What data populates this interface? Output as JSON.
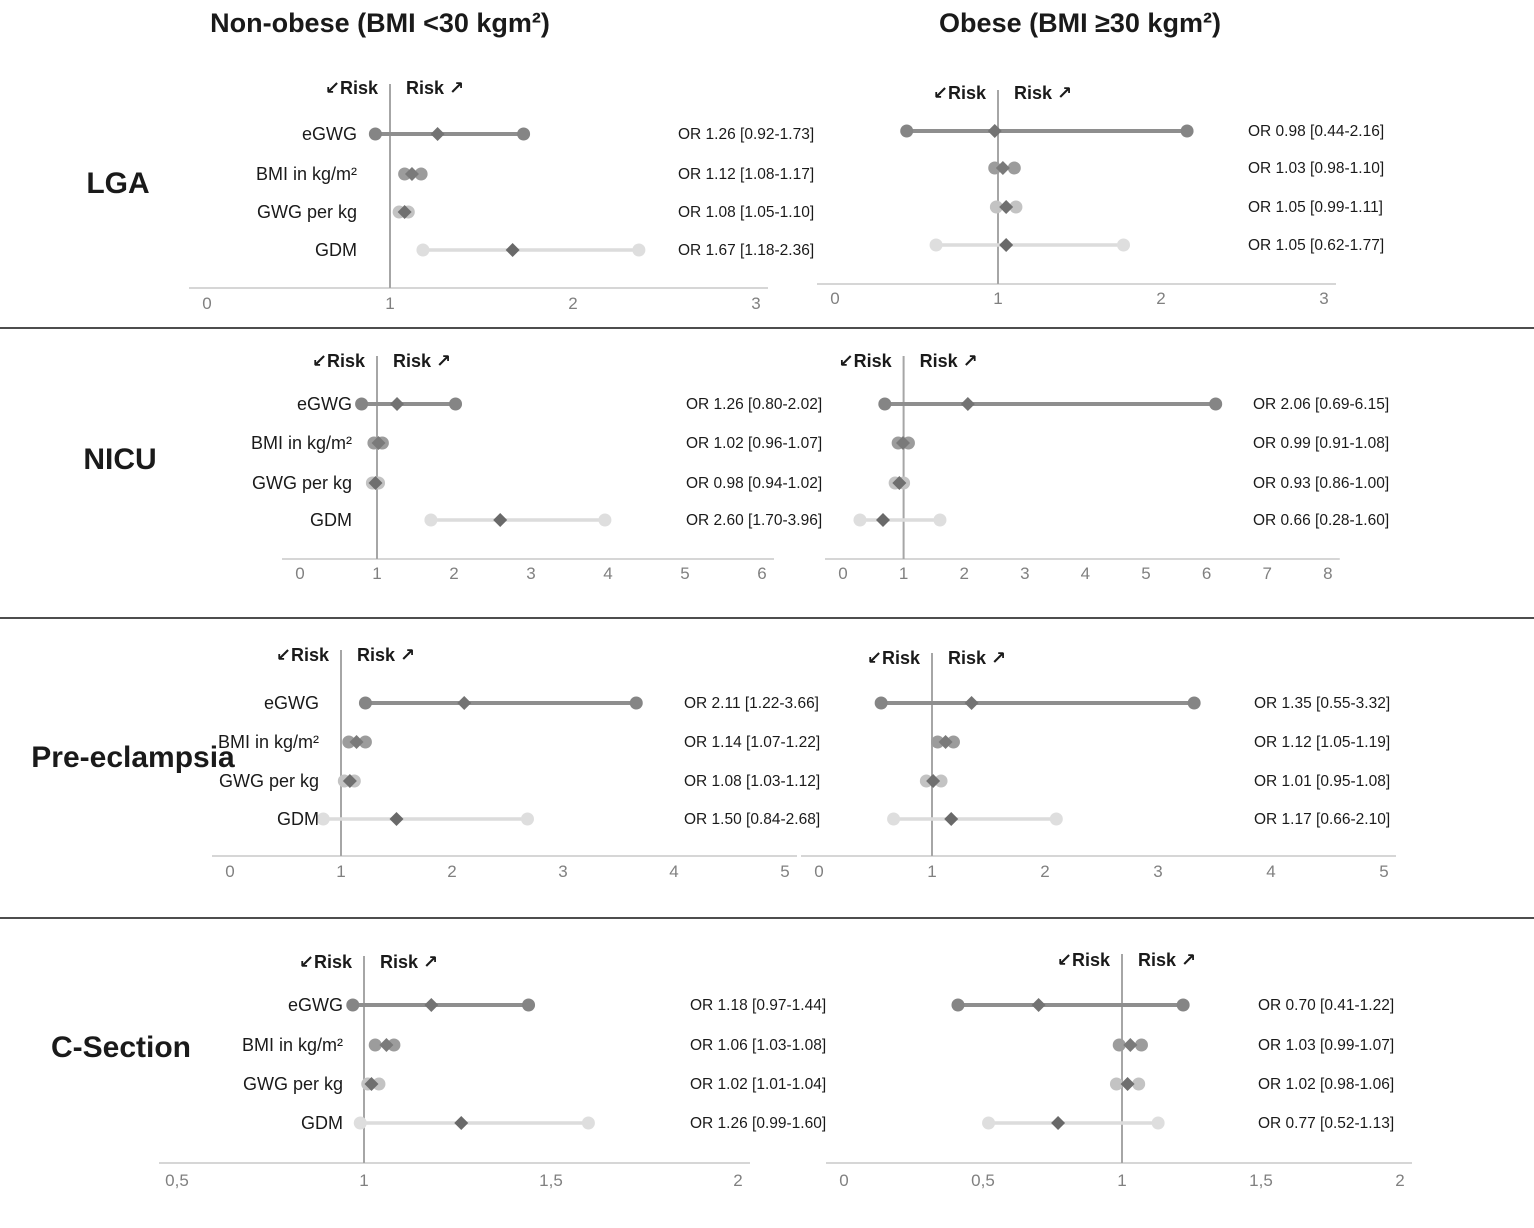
{
  "figure": {
    "column_titles": [
      "Non-obese (BMI <30 kgm²)",
      "Obese (BMI ≥30 kgm²)"
    ],
    "risk_decrease_label": "↙Risk",
    "risk_increase_label": "Risk ↗",
    "or_label_prefix": "OR",
    "colors": {
      "axis_line": "#c9c9c9",
      "reference_line": "#a6a6a6",
      "tick_label": "#808080",
      "separator": "#4d4d4d",
      "text": "#1a1a1a",
      "series": {
        "eGWG": {
          "line": "#8e8e8e",
          "endpoint": "#858585",
          "diamond": "#737373",
          "line_width": 4
        },
        "BMI in kg/m²": {
          "line": "#9c9c9c",
          "endpoint": "#9c9c9c",
          "diamond": "#7a7a7a",
          "line_width": 3
        },
        "GWG per kg": {
          "line": "#c3c3c3",
          "endpoint": "#c3c3c3",
          "diamond": "#6f6f6f",
          "line_width": 3
        },
        "GDM": {
          "line": "#dcdcdc",
          "endpoint": "#dedede",
          "diamond": "#696969",
          "line_width": 3.5
        }
      }
    }
  },
  "chart_data": [
    {
      "type": "forest",
      "outcome": "LGA",
      "panels": [
        {
          "group": "Non-obese (BMI <30 kgm²)",
          "x_axis": {
            "min": 0,
            "max": 3,
            "reference_line": 1,
            "ticks": [
              0,
              1,
              2,
              3
            ],
            "tick_labels": [
              "0",
              "1",
              "2",
              "3"
            ]
          },
          "rows": [
            {
              "predictor": "eGWG",
              "or": 1.26,
              "ci_low": 0.92,
              "ci_high": 1.73,
              "label": "OR 1.26 [0.92-1.73]"
            },
            {
              "predictor": "BMI in kg/m²",
              "or": 1.12,
              "ci_low": 1.08,
              "ci_high": 1.17,
              "label": "OR 1.12 [1.08-1.17]"
            },
            {
              "predictor": "GWG per kg",
              "or": 1.08,
              "ci_low": 1.05,
              "ci_high": 1.1,
              "label": "OR 1.08 [1.05-1.10]"
            },
            {
              "predictor": "GDM",
              "or": 1.67,
              "ci_low": 1.18,
              "ci_high": 2.36,
              "label": "OR 1.67 [1.18-2.36]"
            }
          ]
        },
        {
          "group": "Obese (BMI ≥30 kgm²)",
          "x_axis": {
            "min": 0,
            "max": 3,
            "reference_line": 1,
            "ticks": [
              0,
              1,
              2,
              3
            ],
            "tick_labels": [
              "0",
              "1",
              "2",
              "3"
            ]
          },
          "rows": [
            {
              "predictor": "eGWG",
              "or": 0.98,
              "ci_low": 0.44,
              "ci_high": 2.16,
              "label": "OR 0.98 [0.44-2.16]"
            },
            {
              "predictor": "BMI in kg/m²",
              "or": 1.03,
              "ci_low": 0.98,
              "ci_high": 1.1,
              "label": "OR 1.03 [0.98-1.10]"
            },
            {
              "predictor": "GWG per kg",
              "or": 1.05,
              "ci_low": 0.99,
              "ci_high": 1.11,
              "label": "OR 1.05 [0.99-1.11]"
            },
            {
              "predictor": "GDM",
              "or": 1.05,
              "ci_low": 0.62,
              "ci_high": 1.77,
              "label": "OR 1.05 [0.62-1.77]"
            }
          ]
        }
      ]
    },
    {
      "type": "forest",
      "outcome": "NICU",
      "panels": [
        {
          "group": "Non-obese (BMI <30 kgm²)",
          "x_axis": {
            "min": 0,
            "max": 6,
            "reference_line": 1,
            "ticks": [
              0,
              1,
              2,
              3,
              4,
              5,
              6
            ],
            "tick_labels": [
              "0",
              "1",
              "2",
              "3",
              "4",
              "5",
              "6"
            ]
          },
          "rows": [
            {
              "predictor": "eGWG",
              "or": 1.26,
              "ci_low": 0.8,
              "ci_high": 2.02,
              "label": "OR 1.26 [0.80-2.02]"
            },
            {
              "predictor": "BMI in kg/m²",
              "or": 1.02,
              "ci_low": 0.96,
              "ci_high": 1.07,
              "label": "OR 1.02 [0.96-1.07]"
            },
            {
              "predictor": "GWG per kg",
              "or": 0.98,
              "ci_low": 0.94,
              "ci_high": 1.02,
              "label": "OR 0.98 [0.94-1.02]"
            },
            {
              "predictor": "GDM",
              "or": 2.6,
              "ci_low": 1.7,
              "ci_high": 3.96,
              "label": "OR 2.60 [1.70-3.96]"
            }
          ]
        },
        {
          "group": "Obese (BMI ≥30 kgm²)",
          "x_axis": {
            "min": 0,
            "max": 8,
            "reference_line": 1,
            "ticks": [
              0,
              1,
              2,
              3,
              4,
              5,
              6,
              7,
              8
            ],
            "tick_labels": [
              "0",
              "1",
              "2",
              "3",
              "4",
              "5",
              "6",
              "7",
              "8"
            ]
          },
          "rows": [
            {
              "predictor": "eGWG",
              "or": 2.06,
              "ci_low": 0.69,
              "ci_high": 6.15,
              "label": "OR 2.06 [0.69-6.15]"
            },
            {
              "predictor": "BMI in kg/m²",
              "or": 0.99,
              "ci_low": 0.91,
              "ci_high": 1.08,
              "label": "OR 0.99 [0.91-1.08]"
            },
            {
              "predictor": "GWG per kg",
              "or": 0.93,
              "ci_low": 0.86,
              "ci_high": 1.0,
              "label": "OR 0.93 [0.86-1.00]"
            },
            {
              "predictor": "GDM",
              "or": 0.66,
              "ci_low": 0.28,
              "ci_high": 1.6,
              "label": "OR 0.66 [0.28-1.60]"
            }
          ]
        }
      ]
    },
    {
      "type": "forest",
      "outcome": "Pre-eclampsia",
      "panels": [
        {
          "group": "Non-obese (BMI <30 kgm²)",
          "x_axis": {
            "min": 0,
            "max": 5,
            "reference_line": 1,
            "ticks": [
              0,
              1,
              2,
              3,
              4,
              5
            ],
            "tick_labels": [
              "0",
              "1",
              "2",
              "3",
              "4",
              "5"
            ]
          },
          "rows": [
            {
              "predictor": "eGWG",
              "or": 2.11,
              "ci_low": 1.22,
              "ci_high": 3.66,
              "label": "OR 2.11 [1.22-3.66]"
            },
            {
              "predictor": "BMI in kg/m²",
              "or": 1.14,
              "ci_low": 1.07,
              "ci_high": 1.22,
              "label": "OR 1.14 [1.07-1.22]"
            },
            {
              "predictor": "GWG per kg",
              "or": 1.08,
              "ci_low": 1.03,
              "ci_high": 1.12,
              "label": "OR 1.08 [1.03-1.12]"
            },
            {
              "predictor": "GDM",
              "or": 1.5,
              "ci_low": 0.84,
              "ci_high": 2.68,
              "label": "OR 1.50 [0.84-2.68]"
            }
          ]
        },
        {
          "group": "Obese (BMI ≥30 kgm²)",
          "x_axis": {
            "min": 0,
            "max": 5,
            "reference_line": 1,
            "ticks": [
              0,
              1,
              2,
              3,
              4,
              5
            ],
            "tick_labels": [
              "0",
              "1",
              "2",
              "3",
              "4",
              "5"
            ]
          },
          "rows": [
            {
              "predictor": "eGWG",
              "or": 1.35,
              "ci_low": 0.55,
              "ci_high": 3.32,
              "label": "OR 1.35 [0.55-3.32]"
            },
            {
              "predictor": "BMI in kg/m²",
              "or": 1.12,
              "ci_low": 1.05,
              "ci_high": 1.19,
              "label": "OR 1.12 [1.05-1.19]"
            },
            {
              "predictor": "GWG per kg",
              "or": 1.01,
              "ci_low": 0.95,
              "ci_high": 1.08,
              "label": "OR 1.01 [0.95-1.08]"
            },
            {
              "predictor": "GDM",
              "or": 1.17,
              "ci_low": 0.66,
              "ci_high": 2.1,
              "label": "OR 1.17 [0.66-2.10]"
            }
          ]
        }
      ]
    },
    {
      "type": "forest",
      "outcome": "C-Section",
      "panels": [
        {
          "group": "Non-obese (BMI <30 kgm²)",
          "x_axis": {
            "min": 0.5,
            "max": 2,
            "reference_line": 1,
            "ticks": [
              0.5,
              1,
              1.5,
              2
            ],
            "tick_labels": [
              "0,5",
              "1",
              "1,5",
              "2"
            ]
          },
          "rows": [
            {
              "predictor": "eGWG",
              "or": 1.18,
              "ci_low": 0.97,
              "ci_high": 1.44,
              "label": "OR 1.18 [0.97-1.44]"
            },
            {
              "predictor": "BMI in kg/m²",
              "or": 1.06,
              "ci_low": 1.03,
              "ci_high": 1.08,
              "label": "OR 1.06 [1.03-1.08]"
            },
            {
              "predictor": "GWG per kg",
              "or": 1.02,
              "ci_low": 1.01,
              "ci_high": 1.04,
              "label": "OR 1.02 [1.01-1.04]"
            },
            {
              "predictor": "GDM",
              "or": 1.26,
              "ci_low": 0.99,
              "ci_high": 1.6,
              "label": "OR 1.26 [0.99-1.60]"
            }
          ]
        },
        {
          "group": "Obese (BMI ≥30 kgm²)",
          "x_axis": {
            "min": 0,
            "max": 2,
            "reference_line": 1,
            "ticks": [
              0,
              0.5,
              1,
              1.5,
              2
            ],
            "tick_labels": [
              "0",
              "0,5",
              "1",
              "1,5",
              "2"
            ]
          },
          "rows": [
            {
              "predictor": "eGWG",
              "or": 0.7,
              "ci_low": 0.41,
              "ci_high": 1.22,
              "label": "OR 0.70 [0.41-1.22]"
            },
            {
              "predictor": "BMI in kg/m²",
              "or": 1.03,
              "ci_low": 0.99,
              "ci_high": 1.07,
              "label": "OR 1.03 [0.99-1.07]"
            },
            {
              "predictor": "GWG per kg",
              "or": 1.02,
              "ci_low": 0.98,
              "ci_high": 1.06,
              "label": "OR 1.02 [0.98-1.06]"
            },
            {
              "predictor": "GDM",
              "or": 0.77,
              "ci_low": 0.52,
              "ci_high": 1.13,
              "label": "OR 0.77 [0.52-1.13]"
            }
          ]
        }
      ]
    }
  ]
}
